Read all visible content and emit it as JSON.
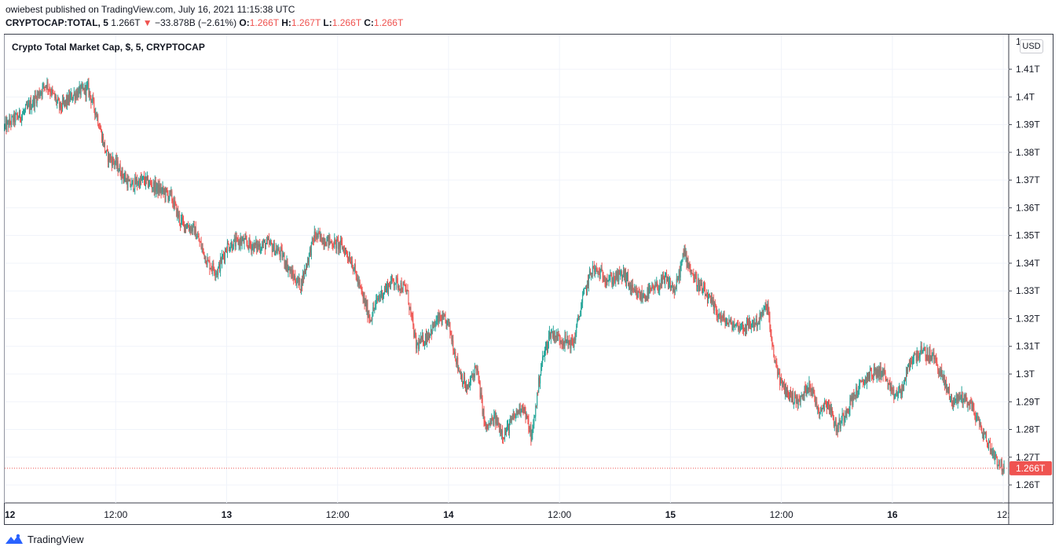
{
  "header": {
    "published_line": "owiebest published on TradingView.com, July 16, 2021 11:15:38 UTC",
    "symbol": "CRYPTOCAP:TOTAL, 5",
    "last": "1.266T",
    "change_arrow": "▼",
    "change": "−33.878B (−2.61%)",
    "o_label": "O:",
    "o_value": "1.266T",
    "h_label": "H:",
    "h_value": "1.267T",
    "l_label": "L:",
    "l_value": "1.266T",
    "c_label": "C:",
    "c_value": "1.266T"
  },
  "currency_button": "USD",
  "footer": {
    "brand": "TradingView",
    "logo_icon": "tradingview-logo-icon"
  },
  "colors": {
    "up": "#26a69a",
    "down": "#ef5350",
    "grid": "#f0f3fa",
    "price_line": "#ef5350"
  },
  "chart_data": {
    "type": "candlestick",
    "title": "Crypto Total Market Cap, $, 5, CRYPTOCAP",
    "ylim": [
      1.2535,
      1.4225
    ],
    "y_unit": "T",
    "y_ticks": [
      1.26,
      1.27,
      1.28,
      1.29,
      1.3,
      1.31,
      1.32,
      1.33,
      1.34,
      1.35,
      1.36,
      1.37,
      1.38,
      1.39,
      1.4,
      1.41
    ],
    "y_tick_labels": [
      "1.26T",
      "1.27T",
      "1.28T",
      "1.29T",
      "1.3T",
      "1.31T",
      "1.32T",
      "1.33T",
      "1.34T",
      "1.35T",
      "1.36T",
      "1.37T",
      "1.38T",
      "1.39T",
      "1.4T",
      "1.41T"
    ],
    "y_top_partial_label": "1",
    "x_tick_labels": [
      "12",
      "12:00",
      "13",
      "12:00",
      "14",
      "12:00",
      "15",
      "12:00",
      "16",
      "12:"
    ],
    "x_tick_hours": [
      0,
      12,
      24,
      36,
      48,
      60,
      72,
      84,
      96,
      108
    ],
    "x_range_hours": [
      0,
      108.5
    ],
    "last_price": 1.266,
    "last_price_label": "1.266T",
    "close_path": [
      [
        0.0,
        1.389
      ],
      [
        1.0,
        1.392
      ],
      [
        2.0,
        1.394
      ],
      [
        3.0,
        1.398
      ],
      [
        4.5,
        1.405
      ],
      [
        6.0,
        1.396
      ],
      [
        7.5,
        1.401
      ],
      [
        9.0,
        1.403
      ],
      [
        10.0,
        1.393
      ],
      [
        11.0,
        1.379
      ],
      [
        12.0,
        1.376
      ],
      [
        13.5,
        1.368
      ],
      [
        15.0,
        1.37
      ],
      [
        16.5,
        1.367
      ],
      [
        18.0,
        1.364
      ],
      [
        19.0,
        1.355
      ],
      [
        20.5,
        1.352
      ],
      [
        22.0,
        1.34
      ],
      [
        23.0,
        1.337
      ],
      [
        24.0,
        1.346
      ],
      [
        25.5,
        1.348
      ],
      [
        27.0,
        1.346
      ],
      [
        28.5,
        1.347
      ],
      [
        30.0,
        1.343
      ],
      [
        31.0,
        1.336
      ],
      [
        32.0,
        1.332
      ],
      [
        33.5,
        1.35
      ],
      [
        35.0,
        1.348
      ],
      [
        36.5,
        1.346
      ],
      [
        37.5,
        1.341
      ],
      [
        38.5,
        1.33
      ],
      [
        39.5,
        1.32
      ],
      [
        40.5,
        1.328
      ],
      [
        42.0,
        1.334
      ],
      [
        43.5,
        1.33
      ],
      [
        44.5,
        1.31
      ],
      [
        45.5,
        1.313
      ],
      [
        47.0,
        1.32
      ],
      [
        48.0,
        1.318
      ],
      [
        49.0,
        1.303
      ],
      [
        50.0,
        1.294
      ],
      [
        51.0,
        1.303
      ],
      [
        52.0,
        1.28
      ],
      [
        53.0,
        1.284
      ],
      [
        54.0,
        1.278
      ],
      [
        55.0,
        1.284
      ],
      [
        56.0,
        1.289
      ],
      [
        57.0,
        1.277
      ],
      [
        58.0,
        1.303
      ],
      [
        59.0,
        1.315
      ],
      [
        60.5,
        1.312
      ],
      [
        61.5,
        1.311
      ],
      [
        62.5,
        1.327
      ],
      [
        63.5,
        1.338
      ],
      [
        64.5,
        1.336
      ],
      [
        65.5,
        1.334
      ],
      [
        67.0,
        1.336
      ],
      [
        68.0,
        1.329
      ],
      [
        69.0,
        1.328
      ],
      [
        70.0,
        1.33
      ],
      [
        71.5,
        1.334
      ],
      [
        72.5,
        1.33
      ],
      [
        73.5,
        1.344
      ],
      [
        74.5,
        1.335
      ],
      [
        75.5,
        1.33
      ],
      [
        76.5,
        1.325
      ],
      [
        77.5,
        1.32
      ],
      [
        78.5,
        1.318
      ],
      [
        80.0,
        1.317
      ],
      [
        81.5,
        1.319
      ],
      [
        82.5,
        1.325
      ],
      [
        83.0,
        1.309
      ],
      [
        84.0,
        1.296
      ],
      [
        85.0,
        1.292
      ],
      [
        86.0,
        1.29
      ],
      [
        87.0,
        1.297
      ],
      [
        88.0,
        1.287
      ],
      [
        89.0,
        1.29
      ],
      [
        90.0,
        1.28
      ],
      [
        91.0,
        1.287
      ],
      [
        92.0,
        1.293
      ],
      [
        93.5,
        1.3
      ],
      [
        95.0,
        1.301
      ],
      [
        96.0,
        1.292
      ],
      [
        97.0,
        1.294
      ],
      [
        98.0,
        1.305
      ],
      [
        99.0,
        1.308
      ],
      [
        100.5,
        1.306
      ],
      [
        101.5,
        1.298
      ],
      [
        102.5,
        1.29
      ],
      [
        103.5,
        1.292
      ],
      [
        104.5,
        1.289
      ],
      [
        105.5,
        1.281
      ],
      [
        106.5,
        1.274
      ],
      [
        107.5,
        1.268
      ],
      [
        108.0,
        1.266
      ]
    ]
  }
}
